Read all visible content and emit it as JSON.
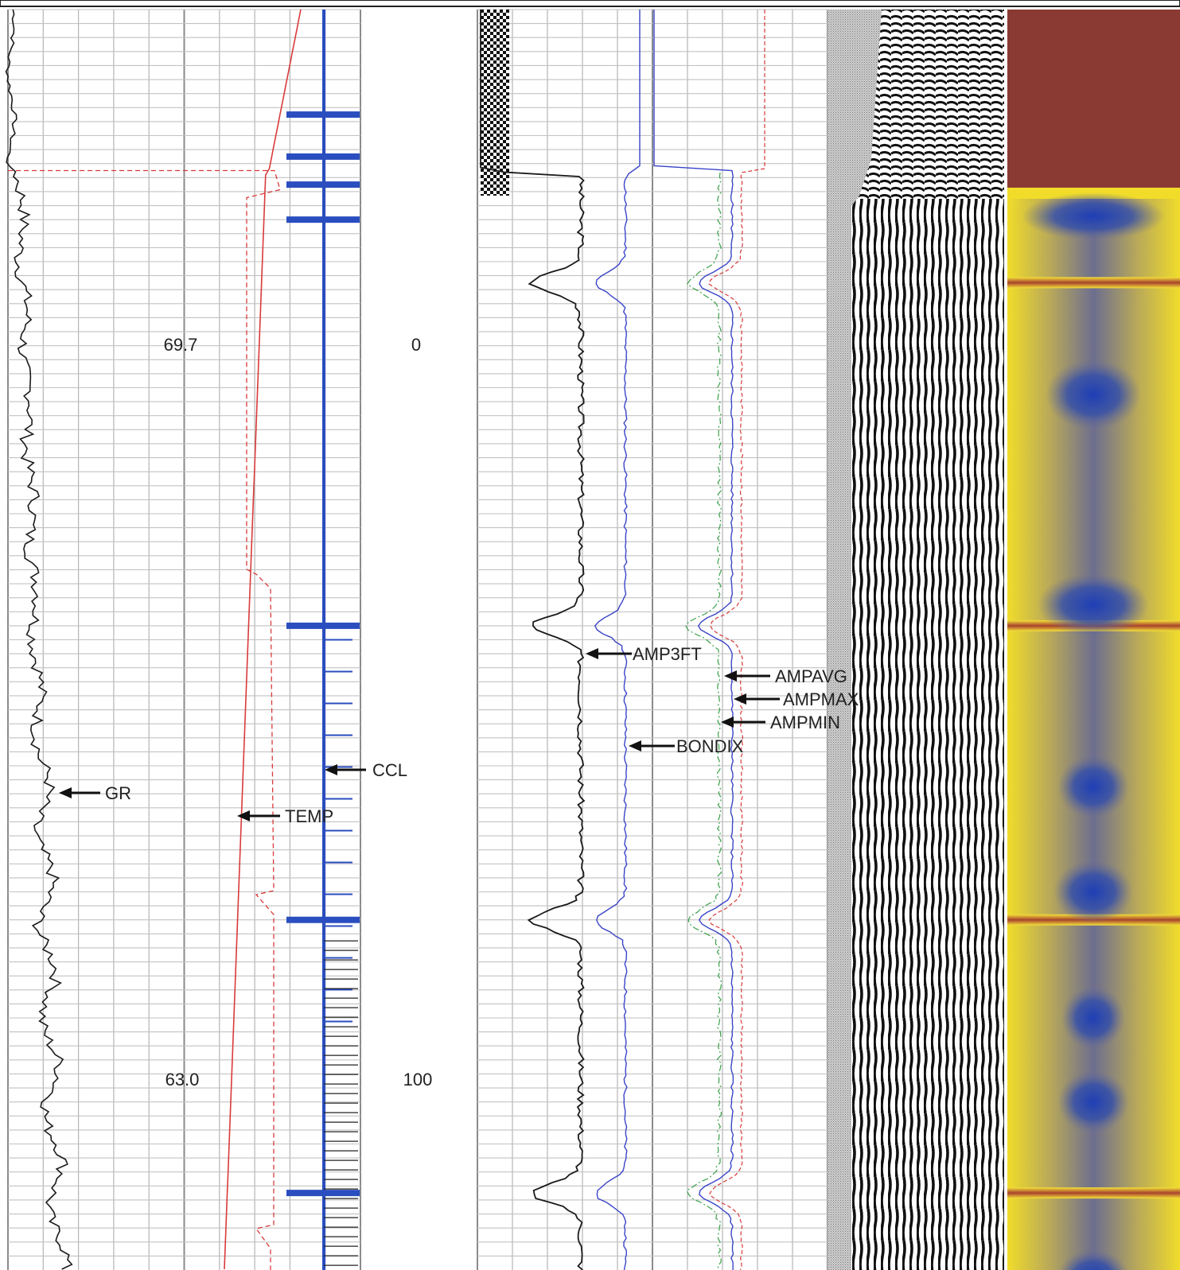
{
  "chart_data": {
    "type": "line",
    "title": "",
    "depth_labels": {
      "upper_value": "69.7",
      "lower_value": "63.0",
      "upper_depth": "0",
      "lower_depth": "100"
    },
    "depth_axis": {
      "ylim": [
        -45,
        135
      ],
      "unit": ""
    },
    "curve_labels": {
      "gr": "GR",
      "temp": "TEMP",
      "ccl": "CCL",
      "amp3ft": "AMP3FT",
      "ampavg": "AMPAVG",
      "ampmax": "AMPMAX",
      "ampmin": "AMPMIN",
      "bondix": "BONDIX"
    },
    "colors": {
      "gr": "#1a1a1a",
      "temp": "#d93a3a",
      "ccl": "#2a4dbf",
      "amp3ft": "#1a1a1a",
      "bondix": "#3b45c8",
      "ampavg": "#3b45c8",
      "ampmax": "#d93a3a",
      "ampmin": "#3aa04a",
      "cbl_top": "#8a3a32",
      "vdl_grey": "#b5b5b5",
      "map_yellow": "#f1dc2a",
      "map_blue": "#2c4aa6"
    },
    "grid": true,
    "collar_depths": [
      -30,
      -24,
      -20,
      -15,
      43,
      85,
      124
    ],
    "top_of_cement_depth": -22
  }
}
